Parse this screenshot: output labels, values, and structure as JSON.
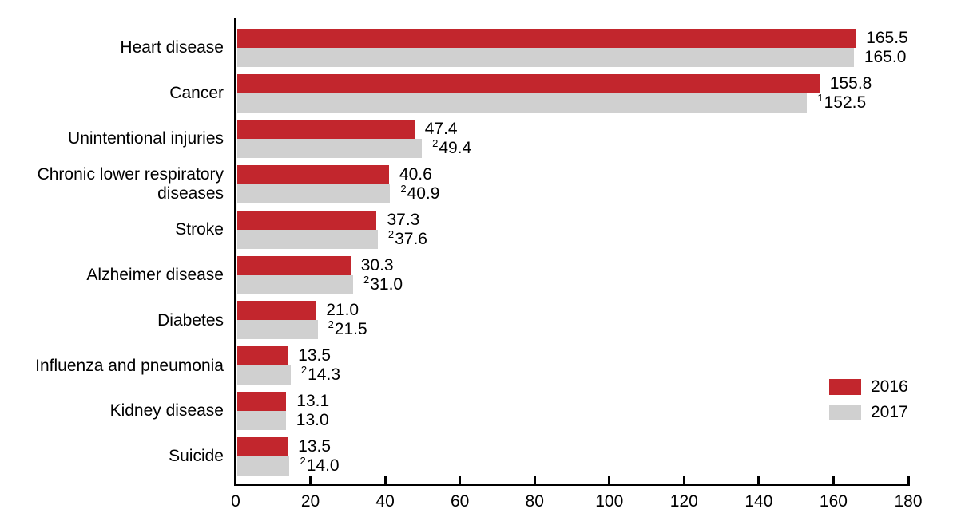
{
  "chart_data": {
    "type": "bar",
    "orientation": "horizontal",
    "title": "",
    "xlabel": "",
    "ylabel": "",
    "categories": [
      "Heart disease",
      "Cancer",
      "Unintentional injuries",
      "Chronic lower respiratory\ndiseases",
      "Stroke",
      "Alzheimer disease",
      "Diabetes",
      "Influenza and pneumonia",
      "Kidney disease",
      "Suicide"
    ],
    "series": [
      {
        "name": "2016",
        "color": "#C2262D",
        "values": [
          165.5,
          155.8,
          47.4,
          40.6,
          37.3,
          30.3,
          21.0,
          13.5,
          13.1,
          13.5
        ],
        "value_labels": [
          "165.5",
          "155.8",
          "47.4",
          "40.6",
          "37.3",
          "30.3",
          "21.0",
          "13.5",
          "13.1",
          "13.5"
        ],
        "superscripts": [
          "",
          "",
          "",
          "",
          "",
          "",
          "",
          "",
          "",
          ""
        ]
      },
      {
        "name": "2017",
        "color": "#D0D0D0",
        "values": [
          165.0,
          152.5,
          49.4,
          40.9,
          37.6,
          31.0,
          21.5,
          14.3,
          13.0,
          14.0
        ],
        "value_labels": [
          "165.0",
          "152.5",
          "49.4",
          "40.9",
          "37.6",
          "31.0",
          "21.5",
          "14.3",
          "13.0",
          "14.0"
        ],
        "superscripts": [
          "",
          "1",
          "2",
          "2",
          "2",
          "2",
          "2",
          "2",
          "",
          "2"
        ]
      }
    ],
    "xlim": [
      0,
      180
    ],
    "xticks": [
      0,
      20,
      40,
      60,
      80,
      100,
      120,
      140,
      160,
      180
    ],
    "grid": false,
    "legend": {
      "position": "right-middle",
      "entries": [
        {
          "label": "2016",
          "color": "#C2262D"
        },
        {
          "label": "2017",
          "color": "#D0D0D0"
        }
      ]
    }
  },
  "colors": {
    "bar_2016": "#C2262D",
    "bar_2017": "#D0D0D0",
    "axis": "#000000",
    "text": "#000000",
    "background": "#FFFFFF"
  }
}
